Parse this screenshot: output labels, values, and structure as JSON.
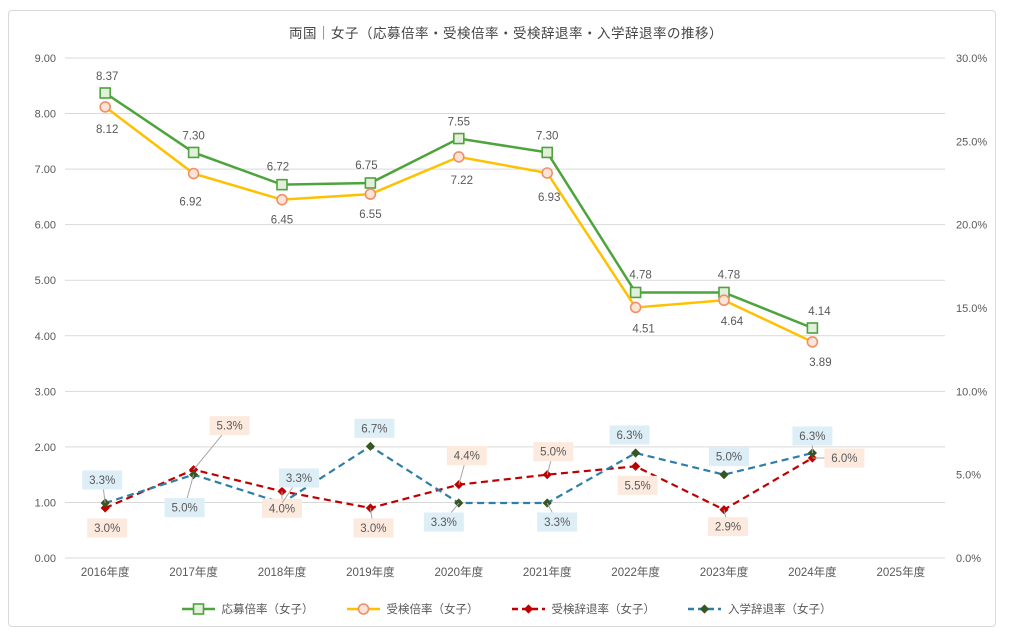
{
  "chart": {
    "title": "両国｜女子（応募倍率・受検倍率・受検辞退率・入学辞退率の推移）"
  },
  "chart_data": {
    "type": "line",
    "title": "両国｜女子（応募倍率・受検倍率・受検辞退率・入学辞退率の推移）",
    "categories": [
      "2016年度",
      "2017年度",
      "2018年度",
      "2019年度",
      "2020年度",
      "2021年度",
      "2022年度",
      "2023年度",
      "2024年度",
      "2025年度"
    ],
    "left_axis": {
      "min": 0,
      "max": 9,
      "ticks": [
        "9.00",
        "8.00",
        "7.00",
        "6.00",
        "5.00",
        "4.00",
        "3.00",
        "2.00",
        "1.00",
        "0.00"
      ]
    },
    "right_axis": {
      "min": 0,
      "max": 30,
      "ticks": [
        "30.0%",
        "25.0%",
        "20.0%",
        "15.0%",
        "10.0%",
        "5.0%",
        "0.0%"
      ]
    },
    "grid": true,
    "legend_position": "bottom",
    "colors": {
      "grid": "#D9D9D9",
      "axis_text": "#595959",
      "title_text": "#454545",
      "leader": "#A6A6A6",
      "border": "#D9D9D9",
      "background": "#FFFFFF"
    },
    "series": [
      {
        "name": "応募倍率（女子）",
        "axis": "left",
        "color": "#4DA43C",
        "dash": null,
        "width": 2.5,
        "marker": "square",
        "marker_fill": "#E2EFDA",
        "marker_stroke": "#4DA43C",
        "values": [
          8.37,
          7.3,
          6.72,
          6.75,
          7.55,
          7.3,
          4.78,
          4.78,
          4.14
        ],
        "labels": [
          "8.37",
          "7.30",
          "6.72",
          "6.75",
          "7.55",
          "7.30",
          "4.78",
          "4.78",
          "4.14"
        ],
        "label_bg": null,
        "label_offsets": [
          [
            2,
            -17
          ],
          [
            0,
            -17
          ],
          [
            -4,
            -18
          ],
          [
            -4,
            -18
          ],
          [
            0,
            -17
          ],
          [
            0,
            -17
          ],
          [
            5,
            -18
          ],
          [
            5,
            -18
          ],
          [
            7,
            -17
          ]
        ],
        "leaders": [
          false,
          false,
          false,
          false,
          false,
          false,
          false,
          false,
          false
        ]
      },
      {
        "name": "受検倍率（女子）",
        "axis": "left",
        "color": "#FFC000",
        "dash": null,
        "width": 2.5,
        "marker": "circle",
        "marker_fill": "#FCE4D6",
        "marker_stroke": "#F0906B",
        "values": [
          8.12,
          6.92,
          6.45,
          6.55,
          7.22,
          6.93,
          4.51,
          4.64,
          3.89
        ],
        "labels": [
          "8.12",
          "6.92",
          "6.45",
          "6.55",
          "7.22",
          "6.93",
          "4.51",
          "4.64",
          "3.89"
        ],
        "label_bg": null,
        "label_offsets": [
          [
            2,
            22
          ],
          [
            -3,
            28
          ],
          [
            0,
            20
          ],
          [
            0,
            20
          ],
          [
            3,
            23
          ],
          [
            2,
            24
          ],
          [
            8,
            21
          ],
          [
            8,
            21
          ],
          [
            8,
            20
          ]
        ],
        "leaders": [
          false,
          false,
          false,
          false,
          false,
          false,
          false,
          false,
          false
        ]
      },
      {
        "name": "受検辞退率（女子）",
        "axis": "right",
        "color": "#C00000",
        "dash": "7 4.5",
        "width": 2.2,
        "marker": "diamond",
        "marker_fill": "#C00000",
        "marker_stroke": "#C00000",
        "values": [
          3.0,
          5.3,
          4.0,
          3.0,
          4.4,
          5.0,
          5.5,
          2.9,
          6.0
        ],
        "labels": [
          "3.0%",
          "5.3%",
          "4.0%",
          "3.0%",
          "4.4%",
          "5.0%",
          "5.5%",
          "2.9%",
          "6.0%"
        ],
        "label_bg": "#FDEADF",
        "label_offsets": [
          [
            2,
            20
          ],
          [
            36,
            -44
          ],
          [
            0,
            17
          ],
          [
            3,
            20
          ],
          [
            8,
            -29
          ],
          [
            6,
            -23
          ],
          [
            2,
            19
          ],
          [
            4,
            17
          ],
          [
            32,
            0
          ]
        ],
        "leaders": [
          false,
          true,
          true,
          true,
          true,
          true,
          false,
          true,
          true
        ]
      },
      {
        "name": "入学辞退率（女子）",
        "axis": "right",
        "color": "#2D7FA8",
        "dash": "7 4.5",
        "width": 2.2,
        "marker": "diamond",
        "marker_fill": "#375623",
        "marker_stroke": "#375623",
        "values": [
          3.3,
          5.0,
          3.3,
          6.7,
          3.3,
          3.3,
          6.3,
          5.0,
          6.3
        ],
        "labels": [
          "3.3%",
          "5.0%",
          "3.3%",
          "6.7%",
          "3.3%",
          "3.3%",
          "6.3%",
          "5.0%",
          "6.3%"
        ],
        "label_bg": "#DDEEF7",
        "label_offsets": [
          [
            -3,
            -23
          ],
          [
            -9,
            33
          ],
          [
            17,
            -25
          ],
          [
            4,
            -18
          ],
          [
            -15,
            19
          ],
          [
            10,
            19
          ],
          [
            -6,
            -18
          ],
          [
            5,
            -18
          ],
          [
            0,
            -17
          ]
        ],
        "leaders": [
          true,
          true,
          true,
          false,
          true,
          true,
          false,
          false,
          true
        ]
      }
    ]
  }
}
